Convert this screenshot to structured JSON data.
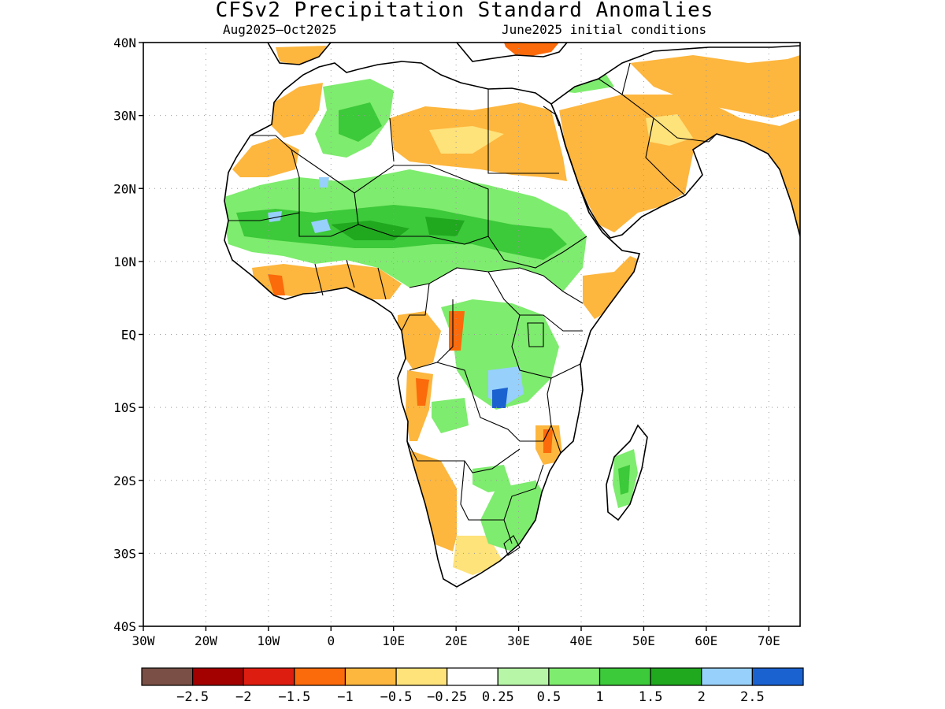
{
  "title": "CFSv2 Precipitation Standard Anomalies",
  "subtitle_left": "Aug2025–Oct2025",
  "subtitle_right": "June2025 initial conditions",
  "map": {
    "lon_range": [
      -30,
      75
    ],
    "lat_range": [
      -40,
      40
    ],
    "lat_ticks": [
      "40N",
      "30N",
      "20N",
      "10N",
      "EQ",
      "10S",
      "20S",
      "30S",
      "40S"
    ],
    "lon_ticks": [
      "30W",
      "20W",
      "10W",
      "0",
      "10E",
      "20E",
      "30E",
      "40E",
      "50E",
      "60E",
      "70E"
    ],
    "gridlines": "dotted",
    "features": [
      "africa-coastline",
      "country-borders",
      "arabian-peninsula",
      "madagascar",
      "iberia"
    ]
  },
  "colorbar": {
    "colors": [
      "#7a4f45",
      "#a30000",
      "#dd1d10",
      "#fb6a0b",
      "#fdb63e",
      "#fee27a",
      "#ffffff",
      "#b6f6a6",
      "#7eec6e",
      "#3cc93a",
      "#20a81f",
      "#96d0fb",
      "#1b62d1"
    ],
    "labels": [
      "−2.5",
      "−2",
      "−1.5",
      "−1",
      "−0.5",
      "−0.25",
      "0.25",
      "0.5",
      "1",
      "1.5",
      "2",
      "2.5"
    ]
  },
  "legend_names": {
    "dry_strong": "brown",
    "dry": "orange",
    "neutral": "white",
    "wet": "green",
    "wet_strong": "blue"
  }
}
